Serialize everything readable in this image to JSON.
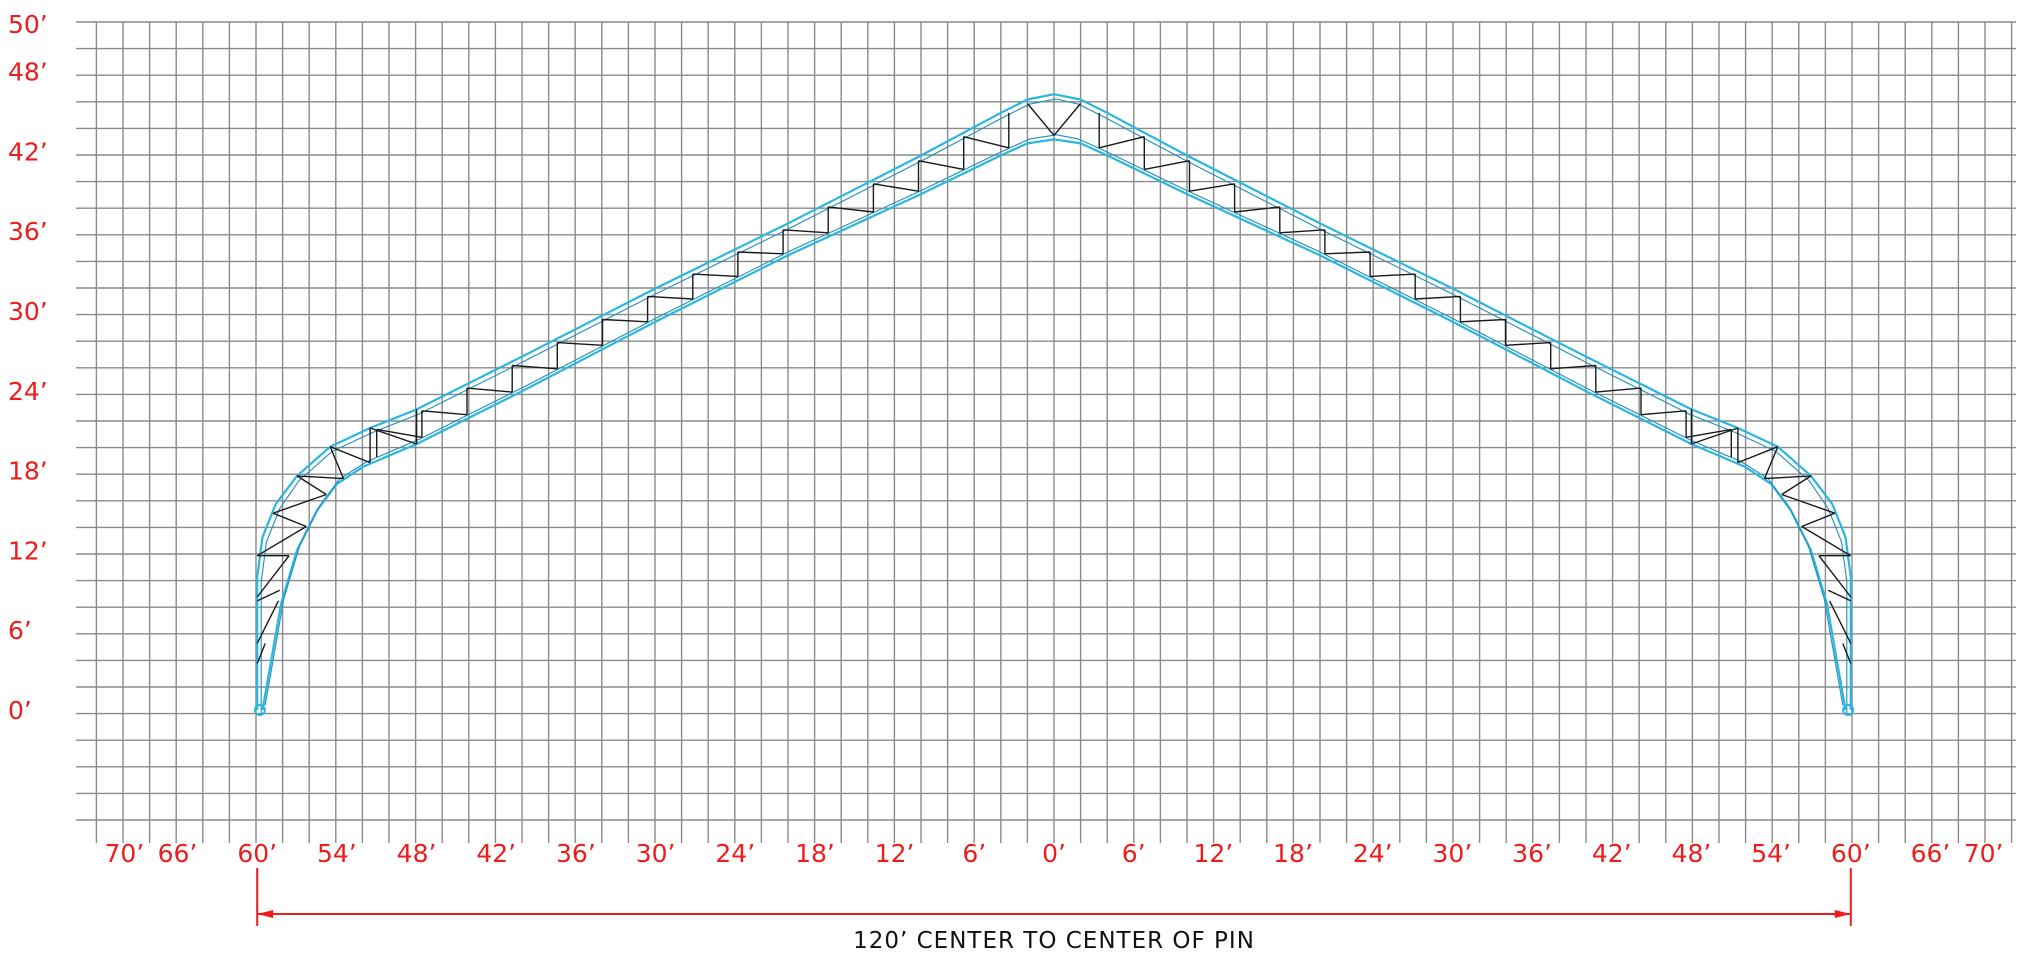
{
  "y_axis": {
    "labels": [
      "50’",
      "48’",
      "42’",
      "36’",
      "30’",
      "24’",
      "18’",
      "12’",
      "6’",
      "0’"
    ],
    "label_values_ft": [
      50,
      48,
      42,
      36,
      30,
      24,
      18,
      12,
      6,
      0
    ]
  },
  "x_axis": {
    "labels": [
      "70’",
      "66’",
      "60’",
      "54’",
      "48’",
      "42’",
      "36’",
      "30’",
      "24’",
      "18’",
      "12’",
      "6’",
      "0’",
      "6’",
      "12’",
      "18’",
      "24’",
      "30’",
      "36’",
      "42’",
      "48’",
      "54’",
      "60’",
      "66’",
      "70’"
    ],
    "label_values_ft": [
      -70,
      -66,
      -60,
      -54,
      -48,
      -42,
      -36,
      -30,
      -24,
      -18,
      -12,
      -6,
      0,
      6,
      12,
      18,
      24,
      30,
      36,
      42,
      48,
      54,
      60,
      66,
      70
    ]
  },
  "dimension": {
    "text": "120’ CENTER TO CENTER OF PIN",
    "span_ft": 120,
    "from_ft": -60,
    "to_ft": 60
  },
  "truss": {
    "peak_ft": 48,
    "pin_height_ft": 0,
    "colors": {
      "chord": "#2bb6e0",
      "web": "#1a1a1a",
      "dimension": "#ee1c1c",
      "grid": "#8a8a8a"
    }
  }
}
